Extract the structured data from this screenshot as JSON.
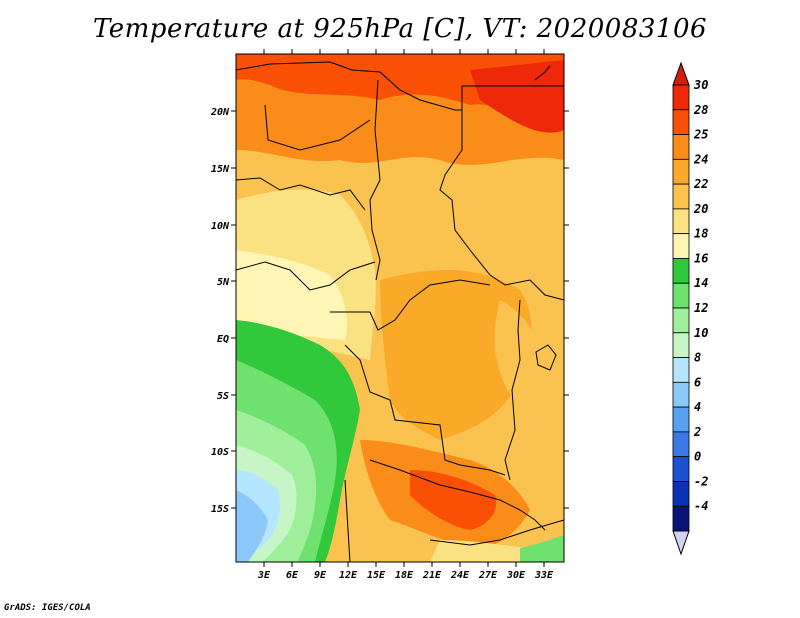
{
  "title": "Temperature at 925hPa [C], VT: 2020083106",
  "credit": "GrADS: IGES/COLA",
  "map": {
    "lon_labels": [
      "3E",
      "6E",
      "9E",
      "12E",
      "15E",
      "18E",
      "21E",
      "24E",
      "27E",
      "30E",
      "33E"
    ],
    "lat_labels": [
      "20N",
      "15N",
      "10N",
      "5N",
      "EQ",
      "5S",
      "10S",
      "15S"
    ]
  },
  "colorbar": {
    "labels": [
      "30",
      "28",
      "25",
      "24",
      "22",
      "20",
      "18",
      "16",
      "14",
      "12",
      "10",
      "8",
      "6",
      "4",
      "2",
      "0",
      "-2",
      "-4"
    ],
    "colors": [
      "#f0280a",
      "#fa5005",
      "#fa8c19",
      "#faaa28",
      "#fac350",
      "#fae182",
      "#fff5b4",
      "#32c83c",
      "#6ee16e",
      "#a0f09b",
      "#c8f5c8",
      "#b4e6ff",
      "#8cc8fa",
      "#5aa0f0",
      "#3c78e6",
      "#1e50d2",
      "#0a32b4",
      "#0a1478"
    ],
    "top_arrow_color": "#d21e0a",
    "bottom_arrow_color": "#d2d2f5"
  }
}
